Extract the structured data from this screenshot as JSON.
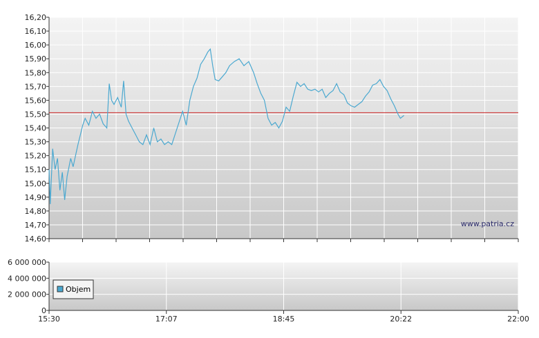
{
  "watermark": "www.patria.cz",
  "chart_data": [
    {
      "type": "line",
      "title": "",
      "xlabel": "",
      "ylabel": "",
      "ylim": [
        14.6,
        16.2
      ],
      "xlim": [
        "15:30",
        "22:00"
      ],
      "y_ticks": [
        "16,20",
        "16,10",
        "16,00",
        "15,90",
        "15,80",
        "15,70",
        "15,60",
        "15,50",
        "15,40",
        "15,30",
        "15,20",
        "15,10",
        "15,00",
        "14,90",
        "14,80",
        "14,70",
        "14,60"
      ],
      "grid": true,
      "reference_line": {
        "value": 15.51,
        "color": "#cc2222"
      },
      "series": [
        {
          "color": "#4aa8d0",
          "points": [
            [
              "15:30",
              15.1
            ],
            [
              "15:31",
              14.85
            ],
            [
              "15:33",
              15.25
            ],
            [
              "15:35",
              15.1
            ],
            [
              "15:37",
              15.18
            ],
            [
              "15:39",
              14.95
            ],
            [
              "15:41",
              15.08
            ],
            [
              "15:43",
              14.88
            ],
            [
              "15:45",
              15.05
            ],
            [
              "15:48",
              15.18
            ],
            [
              "15:50",
              15.12
            ],
            [
              "15:52",
              15.2
            ],
            [
              "15:54",
              15.28
            ],
            [
              "15:56",
              15.35
            ],
            [
              "15:58",
              15.42
            ],
            [
              "16:00",
              15.47
            ],
            [
              "16:03",
              15.42
            ],
            [
              "16:06",
              15.52
            ],
            [
              "16:09",
              15.47
            ],
            [
              "16:12",
              15.5
            ],
            [
              "16:15",
              15.43
            ],
            [
              "16:18",
              15.4
            ],
            [
              "16:20",
              15.72
            ],
            [
              "16:22",
              15.6
            ],
            [
              "16:24",
              15.57
            ],
            [
              "16:27",
              15.62
            ],
            [
              "16:30",
              15.55
            ],
            [
              "16:32",
              15.74
            ],
            [
              "16:34",
              15.5
            ],
            [
              "16:36",
              15.45
            ],
            [
              "16:39",
              15.4
            ],
            [
              "16:42",
              15.35
            ],
            [
              "16:45",
              15.3
            ],
            [
              "16:48",
              15.28
            ],
            [
              "16:51",
              15.35
            ],
            [
              "16:54",
              15.28
            ],
            [
              "16:57",
              15.4
            ],
            [
              "17:00",
              15.3
            ],
            [
              "17:03",
              15.32
            ],
            [
              "17:06",
              15.28
            ],
            [
              "17:09",
              15.3
            ],
            [
              "17:12",
              15.28
            ],
            [
              "17:15",
              15.36
            ],
            [
              "17:18",
              15.44
            ],
            [
              "17:21",
              15.52
            ],
            [
              "17:24",
              15.42
            ],
            [
              "17:27",
              15.6
            ],
            [
              "17:30",
              15.7
            ],
            [
              "17:33",
              15.76
            ],
            [
              "17:36",
              15.86
            ],
            [
              "17:39",
              15.9
            ],
            [
              "17:42",
              15.95
            ],
            [
              "17:44",
              15.97
            ],
            [
              "17:46",
              15.85
            ],
            [
              "17:48",
              15.75
            ],
            [
              "17:51",
              15.74
            ],
            [
              "17:54",
              15.77
            ],
            [
              "17:57",
              15.8
            ],
            [
              "18:00",
              15.85
            ],
            [
              "18:04",
              15.88
            ],
            [
              "18:08",
              15.9
            ],
            [
              "18:12",
              15.85
            ],
            [
              "18:16",
              15.88
            ],
            [
              "18:20",
              15.8
            ],
            [
              "18:23",
              15.72
            ],
            [
              "18:26",
              15.65
            ],
            [
              "18:29",
              15.6
            ],
            [
              "18:32",
              15.47
            ],
            [
              "18:35",
              15.42
            ],
            [
              "18:38",
              15.44
            ],
            [
              "18:41",
              15.4
            ],
            [
              "18:44",
              15.45
            ],
            [
              "18:47",
              15.55
            ],
            [
              "18:50",
              15.52
            ],
            [
              "18:53",
              15.63
            ],
            [
              "18:56",
              15.73
            ],
            [
              "18:59",
              15.7
            ],
            [
              "19:02",
              15.72
            ],
            [
              "19:05",
              15.68
            ],
            [
              "19:08",
              15.67
            ],
            [
              "19:11",
              15.68
            ],
            [
              "19:14",
              15.66
            ],
            [
              "19:17",
              15.68
            ],
            [
              "19:20",
              15.62
            ],
            [
              "19:23",
              15.65
            ],
            [
              "19:26",
              15.67
            ],
            [
              "19:29",
              15.72
            ],
            [
              "19:32",
              15.66
            ],
            [
              "19:35",
              15.64
            ],
            [
              "19:38",
              15.58
            ],
            [
              "19:41",
              15.56
            ],
            [
              "19:44",
              15.55
            ],
            [
              "19:47",
              15.57
            ],
            [
              "19:50",
              15.59
            ],
            [
              "19:53",
              15.63
            ],
            [
              "19:56",
              15.66
            ],
            [
              "19:59",
              15.71
            ],
            [
              "20:02",
              15.72
            ],
            [
              "20:05",
              15.75
            ],
            [
              "20:08",
              15.7
            ],
            [
              "20:11",
              15.67
            ],
            [
              "20:14",
              15.61
            ],
            [
              "20:17",
              15.56
            ],
            [
              "20:20",
              15.5
            ],
            [
              "20:22",
              15.47
            ],
            [
              "20:25",
              15.49
            ]
          ]
        }
      ]
    },
    {
      "type": "bar",
      "title": "",
      "xlabel": "",
      "ylabel": "",
      "ylim": [
        0,
        6000000
      ],
      "y_ticks": [
        "6 000 000",
        "4 000 000",
        "2 000 000",
        "0"
      ],
      "x_ticks": [
        "15:30",
        "17:07",
        "18:45",
        "20:22",
        "22:00"
      ],
      "grid": true,
      "legend": {
        "position": "left",
        "entries": [
          {
            "label": "Objem",
            "color": "#4aa8d0"
          }
        ]
      },
      "values": []
    }
  ]
}
